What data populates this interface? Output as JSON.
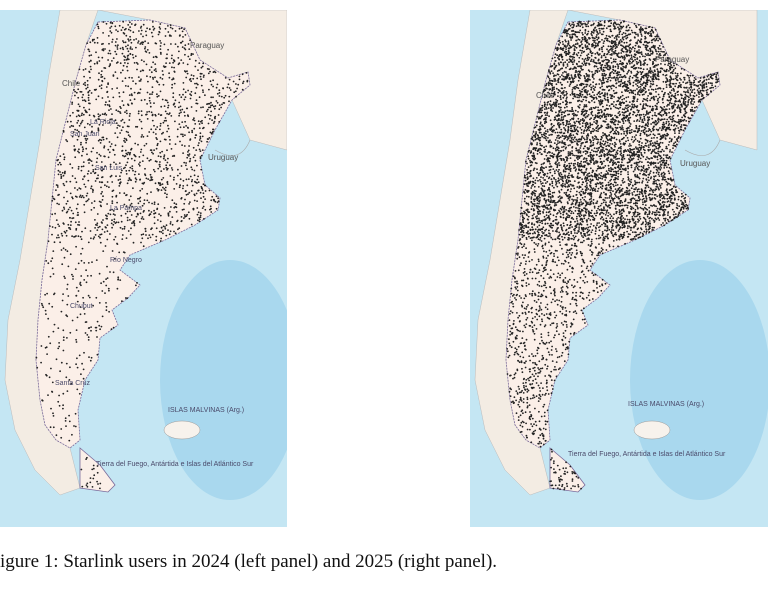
{
  "figure": {
    "panels": [
      {
        "labels": [
          "Paraguay",
          "Chile",
          "Uruguay",
          "La Rioja",
          "San Juan",
          "San Luis",
          "La Pampa",
          "Río Negro",
          "Chubut",
          "Santa Cruz",
          "ISLAS MALVINAS (Arg.)",
          "Tierra del Fuego, Antártida e Islas del Atlántico Sur"
        ]
      },
      {
        "labels": [
          "Paraguay",
          "Chile",
          "Uruguay",
          "ISLAS MALVINAS (Arg.)",
          "Tierra del Fuego, Antártida e Islas del Atlántico Sur"
        ]
      }
    ],
    "caption": "igure 1: Starlink users in 2024 (left panel) and 2025 (right panel)."
  }
}
